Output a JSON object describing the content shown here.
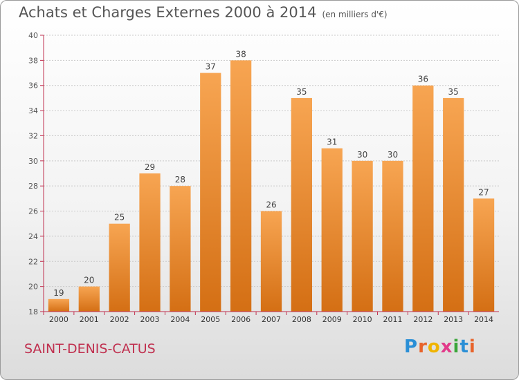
{
  "header": {
    "title": "Achats et Charges Externes 2000 à 2014",
    "unit": "(en milliers d'€)"
  },
  "footer": {
    "commune": "SAINT-DENIS-CATUS",
    "logo_text": "Proxiti",
    "logo_colors": [
      "#2a8fd6",
      "#e8632a",
      "#f0b400",
      "#e23a8a",
      "#3aa53a",
      "#2a8fd6",
      "#e8632a"
    ]
  },
  "chart_data": {
    "type": "bar",
    "title": "Achats et Charges Externes 2000 à 2014",
    "subtitle": "(en milliers d'€)",
    "xlabel": "",
    "ylabel": "",
    "categories": [
      "2000",
      "2001",
      "2002",
      "2003",
      "2004",
      "2005",
      "2006",
      "2007",
      "2008",
      "2009",
      "2010",
      "2011",
      "2012",
      "2013",
      "2014"
    ],
    "values": [
      19,
      20,
      25,
      29,
      28,
      37,
      38,
      26,
      35,
      31,
      30,
      30,
      36,
      35,
      27
    ],
    "ylim": [
      18,
      40
    ],
    "yticks": [
      18,
      20,
      22,
      24,
      26,
      28,
      30,
      32,
      34,
      36,
      38,
      40
    ],
    "grid": true,
    "legend": "none",
    "bar_color_top": "#f7a552",
    "bar_color_bottom": "#d46f14",
    "grid_color": "#c9c9c9",
    "axis_color": "#c0304f"
  }
}
